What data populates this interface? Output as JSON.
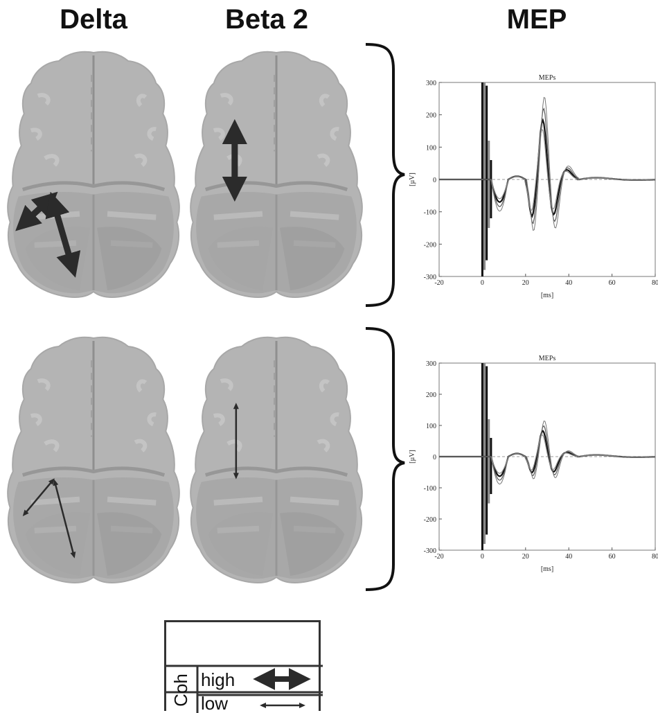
{
  "headers": {
    "delta": "Delta",
    "beta2": "Beta 2",
    "mep": "MEP"
  },
  "charts": [
    {
      "title": "MEPs",
      "ylabel": "[µV]",
      "xlabel": "[ms]",
      "xticks": [
        "-20",
        "0",
        "20",
        "40",
        "60",
        "80"
      ],
      "yticks": [
        "300",
        "200",
        "100",
        "0",
        "-100",
        "-200",
        "-300"
      ],
      "coherence": "high"
    },
    {
      "title": "MEPs",
      "ylabel": "[µV]",
      "xlabel": "[ms]",
      "xticks": [
        "-20",
        "0",
        "20",
        "40",
        "60",
        "80"
      ],
      "yticks": [
        "300",
        "200",
        "100",
        "0",
        "-100",
        "-200",
        "-300"
      ],
      "coherence": "low"
    }
  ],
  "legend": {
    "title": "Coh",
    "high_label": "high",
    "low_label": "low"
  },
  "colors": {
    "brain_fill": "#b4b4b4",
    "brain_shade": "#9c9c9c",
    "arrow": "#2b2b2b",
    "trace_dark": "#111111",
    "trace_light": "#8a8a8a"
  }
}
